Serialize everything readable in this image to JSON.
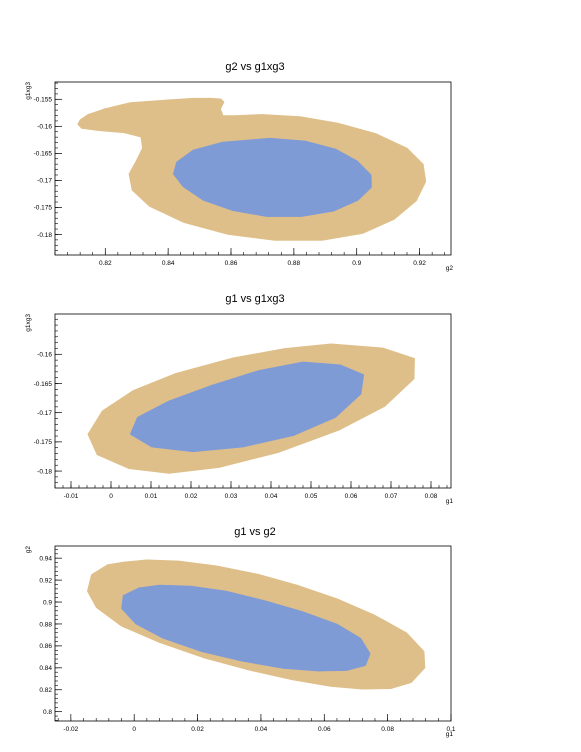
{
  "chart_data": [
    {
      "type": "contour",
      "title": "g2 vs g1xg3",
      "xlabel": "g2",
      "ylabel": "g1xg3",
      "xlim": [
        0.804,
        0.93
      ],
      "ylim": [
        -0.1838,
        -0.1518
      ],
      "xticks": [
        0.82,
        0.84,
        0.86,
        0.88,
        0.9,
        0.92
      ],
      "xtick_labels": [
        "0.82",
        "0.84",
        "0.86",
        "0.88",
        "0.9",
        "0.92"
      ],
      "yticks": [
        -0.155,
        -0.16,
        -0.165,
        -0.17,
        -0.175,
        -0.18
      ],
      "ytick_labels": [
        "-0.155",
        "-0.16",
        "-0.165",
        "-0.17",
        "-0.175",
        "-0.18"
      ],
      "x_minor_step": 0.004,
      "y_minor_step": 0.001,
      "contours": [
        {
          "level": "outer",
          "color": "#dfbf89",
          "points": [
            [
              0.812,
              -0.1588
            ],
            [
              0.8145,
              -0.1578
            ],
            [
              0.82,
              -0.1567
            ],
            [
              0.828,
              -0.1556
            ],
            [
              0.84,
              -0.1551
            ],
            [
              0.848,
              -0.1548
            ],
            [
              0.8535,
              -0.1548
            ],
            [
              0.8568,
              -0.1549
            ],
            [
              0.8578,
              -0.1555
            ],
            [
              0.8567,
              -0.1568
            ],
            [
              0.8575,
              -0.158
            ],
            [
              0.8612,
              -0.158
            ],
            [
              0.87,
              -0.1578
            ],
            [
              0.882,
              -0.1582
            ],
            [
              0.894,
              -0.1594
            ],
            [
              0.906,
              -0.1613
            ],
            [
              0.916,
              -0.164
            ],
            [
              0.9212,
              -0.167
            ],
            [
              0.922,
              -0.1702
            ],
            [
              0.919,
              -0.1738
            ],
            [
              0.912,
              -0.1772
            ],
            [
              0.902,
              -0.1798
            ],
            [
              0.889,
              -0.1811
            ],
            [
              0.874,
              -0.1811
            ],
            [
              0.859,
              -0.18
            ],
            [
              0.845,
              -0.1778
            ],
            [
              0.834,
              -0.1748
            ],
            [
              0.8285,
              -0.1718
            ],
            [
              0.8275,
              -0.1688
            ],
            [
              0.8298,
              -0.1664
            ],
            [
              0.8318,
              -0.164
            ],
            [
              0.8313,
              -0.162
            ],
            [
              0.826,
              -0.1612
            ],
            [
              0.818,
              -0.1608
            ],
            [
              0.8125,
              -0.1604
            ],
            [
              0.8112,
              -0.1596
            ]
          ]
        },
        {
          "level": "inner",
          "color": "#7f9bd6",
          "points": [
            [
              0.8724,
              -0.1622
            ],
            [
              0.8835,
              -0.1627
            ],
            [
              0.8933,
              -0.1642
            ],
            [
              0.9002,
              -0.1664
            ],
            [
              0.9046,
              -0.169
            ],
            [
              0.9047,
              -0.1713
            ],
            [
              0.9004,
              -0.1737
            ],
            [
              0.8926,
              -0.1757
            ],
            [
              0.8824,
              -0.1767
            ],
            [
              0.8714,
              -0.1767
            ],
            [
              0.8606,
              -0.1756
            ],
            [
              0.8512,
              -0.1737
            ],
            [
              0.8448,
              -0.1712
            ],
            [
              0.8416,
              -0.1688
            ],
            [
              0.8427,
              -0.1666
            ],
            [
              0.8479,
              -0.1644
            ],
            [
              0.8574,
              -0.1629
            ]
          ]
        }
      ]
    },
    {
      "type": "contour",
      "title": "g1 vs g1xg3",
      "xlabel": "g1",
      "ylabel": "g1xg3",
      "xlim": [
        -0.014,
        0.085
      ],
      "ylim": [
        -0.1829,
        -0.1531
      ],
      "xticks": [
        -0.01,
        0,
        0.01,
        0.02,
        0.03,
        0.04,
        0.05,
        0.06,
        0.07,
        0.08
      ],
      "xtick_labels": [
        "-0.01",
        "0",
        "0.01",
        "0.02",
        "0.03",
        "0.04",
        "0.05",
        "0.06",
        "0.07",
        "0.08"
      ],
      "yticks": [
        -0.16,
        -0.165,
        -0.17,
        -0.175,
        -0.18
      ],
      "ytick_labels": [
        "-0.16",
        "-0.165",
        "-0.17",
        "-0.175",
        "-0.18"
      ],
      "x_minor_step": 0.002,
      "y_minor_step": 0.001,
      "contours": [
        {
          "level": "outer",
          "color": "#dfbf89",
          "points": [
            [
              0.055,
              -0.1582
            ],
            [
              0.068,
              -0.1589
            ],
            [
              0.0759,
              -0.1607
            ],
            [
              0.0758,
              -0.1642
            ],
            [
              0.0685,
              -0.1689
            ],
            [
              0.057,
              -0.173
            ],
            [
              0.042,
              -0.1768
            ],
            [
              0.027,
              -0.1794
            ],
            [
              0.0145,
              -0.1804
            ],
            [
              0.0045,
              -0.1796
            ],
            [
              -0.0035,
              -0.1772
            ],
            [
              -0.0058,
              -0.1737
            ],
            [
              -0.0022,
              -0.1697
            ],
            [
              0.0055,
              -0.1662
            ],
            [
              0.016,
              -0.1633
            ],
            [
              0.0305,
              -0.1606
            ],
            [
              0.0435,
              -0.159
            ]
          ]
        },
        {
          "level": "inner",
          "color": "#7f9bd6",
          "points": [
            [
              0.048,
              -0.1613
            ],
            [
              0.0573,
              -0.1618
            ],
            [
              0.0632,
              -0.1635
            ],
            [
              0.0625,
              -0.1668
            ],
            [
              0.0562,
              -0.1708
            ],
            [
              0.0458,
              -0.1739
            ],
            [
              0.033,
              -0.1759
            ],
            [
              0.0205,
              -0.1767
            ],
            [
              0.0102,
              -0.1759
            ],
            [
              0.0048,
              -0.1737
            ],
            [
              0.0066,
              -0.1708
            ],
            [
              0.0144,
              -0.168
            ],
            [
              0.0252,
              -0.1653
            ],
            [
              0.0368,
              -0.1628
            ]
          ]
        }
      ]
    },
    {
      "type": "contour",
      "title": "g1 vs g2",
      "xlabel": "g1",
      "ylabel": "g2",
      "xlim": [
        -0.025,
        0.1
      ],
      "ylim": [
        0.7915,
        0.9511
      ],
      "xticks": [
        -0.02,
        0,
        0.02,
        0.04,
        0.06,
        0.08,
        0.1
      ],
      "xtick_labels": [
        "-0.02",
        "0",
        "0.02",
        "0.04",
        "0.06",
        "0.08",
        "0.1"
      ],
      "yticks": [
        0.8,
        0.82,
        0.84,
        0.86,
        0.88,
        0.9,
        0.92,
        0.94
      ],
      "ytick_labels": [
        "0.8",
        "0.82",
        "0.84",
        "0.86",
        "0.88",
        "0.9",
        "0.92",
        "0.94"
      ],
      "x_minor_step": 0.004,
      "y_minor_step": 0.004,
      "contours": [
        {
          "level": "outer",
          "color": "#dfbf89",
          "points": [
            [
              -0.0035,
              0.9365
            ],
            [
              0.004,
              0.9385
            ],
            [
              0.014,
              0.9375
            ],
            [
              0.026,
              0.933
            ],
            [
              0.039,
              0.9255
            ],
            [
              0.052,
              0.915
            ],
            [
              0.064,
              0.903
            ],
            [
              0.076,
              0.888
            ],
            [
              0.086,
              0.872
            ],
            [
              0.0915,
              0.855
            ],
            [
              0.0918,
              0.84
            ],
            [
              0.0875,
              0.8265
            ],
            [
              0.081,
              0.821
            ],
            [
              0.072,
              0.8205
            ],
            [
              0.062,
              0.823
            ],
            [
              0.05,
              0.829
            ],
            [
              0.036,
              0.838
            ],
            [
              0.022,
              0.849
            ],
            [
              0.008,
              0.863
            ],
            [
              -0.004,
              0.878
            ],
            [
              -0.012,
              0.895
            ],
            [
              -0.0148,
              0.91
            ],
            [
              -0.0135,
              0.925
            ],
            [
              -0.0085,
              0.934
            ]
          ]
        },
        {
          "level": "inner",
          "color": "#7f9bd6",
          "points": [
            [
              0.008,
              0.9155
            ],
            [
              0.018,
              0.9145
            ],
            [
              0.029,
              0.91
            ],
            [
              0.041,
              0.9015
            ],
            [
              0.053,
              0.8915
            ],
            [
              0.064,
              0.88
            ],
            [
              0.0715,
              0.867
            ],
            [
              0.0745,
              0.853
            ],
            [
              0.073,
              0.842
            ],
            [
              0.067,
              0.8375
            ],
            [
              0.058,
              0.837
            ],
            [
              0.047,
              0.8395
            ],
            [
              0.034,
              0.846
            ],
            [
              0.021,
              0.855
            ],
            [
              0.009,
              0.867
            ],
            [
              0.0005,
              0.88
            ],
            [
              -0.004,
              0.894
            ],
            [
              -0.0035,
              0.906
            ],
            [
              0.0015,
              0.913
            ]
          ]
        }
      ]
    }
  ]
}
